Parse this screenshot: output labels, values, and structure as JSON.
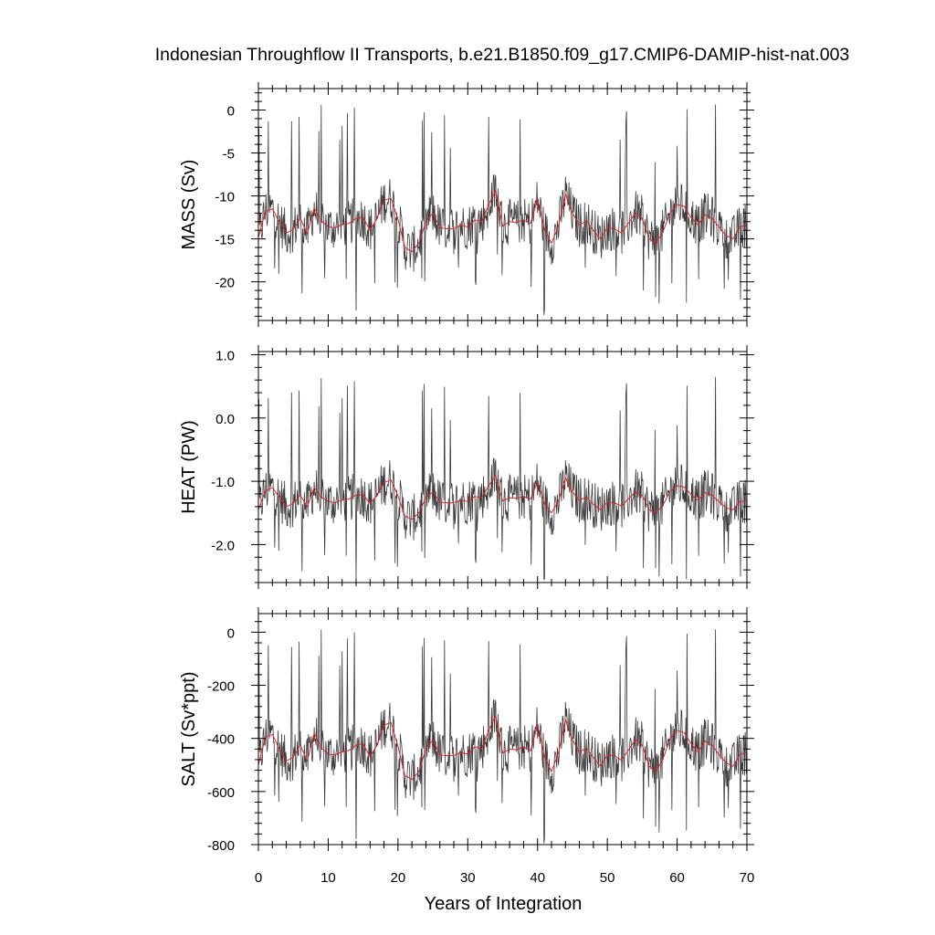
{
  "title": "Indonesian Throughflow II Transports, b.e21.B1850.f09_g17.CMIP6-DAMIP-hist-nat.003",
  "xlabel": "Years of Integration",
  "x_ticks": [
    "0",
    "10",
    "20",
    "30",
    "40",
    "50",
    "60",
    "70"
  ],
  "colors": {
    "raw": "#3a3a3a",
    "smooth": "#e02020",
    "frame": "#000000"
  },
  "chart_data": [
    {
      "type": "line",
      "ylabel": "MASS (Sv)",
      "xlim": [
        0,
        70
      ],
      "ylim": [
        -24.5,
        2.5
      ],
      "yticks": [
        0,
        -5,
        -10,
        -15,
        -20
      ],
      "ytick_labels": [
        "0",
        "-5",
        "-10",
        "-15",
        "-20"
      ],
      "raw_mean": -13.5,
      "raw_min": -24.0,
      "raw_max": 1.5,
      "series": [
        {
          "x": [
            0,
            1,
            2,
            3,
            4,
            5,
            6,
            7,
            8,
            9,
            10,
            11,
            12,
            13,
            14,
            15,
            16,
            17,
            18,
            19,
            20,
            21,
            22,
            23,
            24,
            25,
            26,
            27,
            28,
            29,
            30,
            31,
            32,
            33,
            34,
            35,
            36,
            37,
            38,
            39,
            40,
            41,
            42,
            43,
            44,
            45,
            46,
            47,
            48,
            49,
            50,
            51,
            52,
            53,
            54,
            55,
            56,
            57,
            58,
            59,
            60,
            61,
            62,
            63,
            64,
            65,
            66,
            67,
            68,
            69,
            70
          ],
          "values": [
            -14.8,
            -11.8,
            -11.5,
            -13.0,
            -14.3,
            -13.9,
            -12.6,
            -14.4,
            -11.4,
            -12.9,
            -13.6,
            -13.7,
            -13.3,
            -13.2,
            -12.6,
            -12.5,
            -14.0,
            -12.6,
            -10.5,
            -10.3,
            -12.7,
            -16.0,
            -16.5,
            -15.5,
            -13.0,
            -12.0,
            -13.7,
            -13.8,
            -13.8,
            -13.4,
            -13.6,
            -12.8,
            -13.0,
            -11.0,
            -9.4,
            -13.5,
            -13.0,
            -13.1,
            -12.8,
            -13.2,
            -10.4,
            -14.0,
            -15.5,
            -13.5,
            -9.8,
            -12.0,
            -13.4,
            -12.9,
            -14.0,
            -15.0,
            -13.7,
            -13.8,
            -14.3,
            -13.2,
            -12.0,
            -12.6,
            -15.0,
            -15.5,
            -14.1,
            -12.0,
            -11.0,
            -11.2,
            -12.5,
            -13.4,
            -12.2,
            -12.6,
            -13.6,
            -14.6,
            -15.0,
            -13.6,
            -13.4
          ]
        }
      ]
    },
    {
      "type": "line",
      "ylabel": "HEAT (PW)",
      "xlim": [
        0,
        70
      ],
      "ylim": [
        -2.6,
        1.05
      ],
      "yticks": [
        1.0,
        0.0,
        -1.0,
        -2.0
      ],
      "ytick_labels": [
        "1.0",
        "0.0",
        "-1.0",
        "-2.0"
      ],
      "raw_mean": -1.35,
      "raw_min": -2.55,
      "raw_max": 1.0,
      "series": [
        {
          "x": [
            0,
            1,
            2,
            3,
            4,
            5,
            6,
            7,
            8,
            9,
            10,
            11,
            12,
            13,
            14,
            15,
            16,
            17,
            18,
            19,
            20,
            21,
            22,
            23,
            24,
            25,
            26,
            27,
            28,
            29,
            30,
            31,
            32,
            33,
            34,
            35,
            36,
            37,
            38,
            39,
            40,
            41,
            42,
            43,
            44,
            45,
            46,
            47,
            48,
            49,
            50,
            51,
            52,
            53,
            54,
            55,
            56,
            57,
            58,
            59,
            60,
            61,
            62,
            63,
            64,
            65,
            66,
            67,
            68,
            69,
            70
          ],
          "values": [
            -1.45,
            -1.15,
            -1.1,
            -1.25,
            -1.4,
            -1.35,
            -1.22,
            -1.4,
            -1.1,
            -1.25,
            -1.32,
            -1.34,
            -1.29,
            -1.28,
            -1.22,
            -1.21,
            -1.35,
            -1.22,
            -1.02,
            -0.98,
            -1.23,
            -1.55,
            -1.6,
            -1.5,
            -1.26,
            -1.17,
            -1.33,
            -1.34,
            -1.34,
            -1.3,
            -1.32,
            -1.24,
            -1.26,
            -1.07,
            -0.91,
            -1.31,
            -1.26,
            -1.27,
            -1.24,
            -1.28,
            -1.01,
            -1.36,
            -1.5,
            -1.31,
            -0.95,
            -1.17,
            -1.3,
            -1.25,
            -1.36,
            -1.45,
            -1.33,
            -1.34,
            -1.39,
            -1.28,
            -1.17,
            -1.22,
            -1.45,
            -1.5,
            -1.37,
            -1.16,
            -1.07,
            -1.09,
            -1.21,
            -1.3,
            -1.18,
            -1.22,
            -1.32,
            -1.42,
            -1.45,
            -1.32,
            -1.3
          ]
        }
      ]
    },
    {
      "type": "line",
      "ylabel": "SALT (Sv*ppt)",
      "xlim": [
        0,
        70
      ],
      "ylim": [
        -800,
        70
      ],
      "yticks": [
        0,
        -200,
        -400,
        -600,
        -800
      ],
      "ytick_labels": [
        "0",
        "-200",
        "-400",
        "-600",
        "-800"
      ],
      "raw_mean": -460,
      "raw_min": -795,
      "raw_max": 45,
      "series": [
        {
          "x": [
            0,
            1,
            2,
            3,
            4,
            5,
            6,
            7,
            8,
            9,
            10,
            11,
            12,
            13,
            14,
            15,
            16,
            17,
            18,
            19,
            20,
            21,
            22,
            23,
            24,
            25,
            26,
            27,
            28,
            29,
            30,
            31,
            32,
            33,
            34,
            35,
            36,
            37,
            38,
            39,
            40,
            41,
            42,
            43,
            44,
            45,
            46,
            47,
            48,
            49,
            50,
            51,
            52,
            53,
            54,
            55,
            56,
            57,
            58,
            59,
            60,
            61,
            62,
            63,
            64,
            65,
            66,
            67,
            68,
            69,
            70
          ],
          "values": [
            -500,
            -395,
            -385,
            -440,
            -485,
            -470,
            -425,
            -485,
            -380,
            -435,
            -460,
            -462,
            -450,
            -445,
            -425,
            -420,
            -470,
            -425,
            -350,
            -340,
            -430,
            -540,
            -555,
            -525,
            -440,
            -405,
            -462,
            -465,
            -465,
            -452,
            -460,
            -432,
            -440,
            -370,
            -315,
            -455,
            -440,
            -443,
            -432,
            -447,
            -350,
            -472,
            -525,
            -455,
            -330,
            -405,
            -452,
            -436,
            -472,
            -505,
            -462,
            -465,
            -482,
            -445,
            -405,
            -425,
            -505,
            -525,
            -475,
            -400,
            -370,
            -378,
            -420,
            -452,
            -410,
            -425,
            -460,
            -492,
            -505,
            -460,
            -452
          ]
        }
      ]
    }
  ]
}
